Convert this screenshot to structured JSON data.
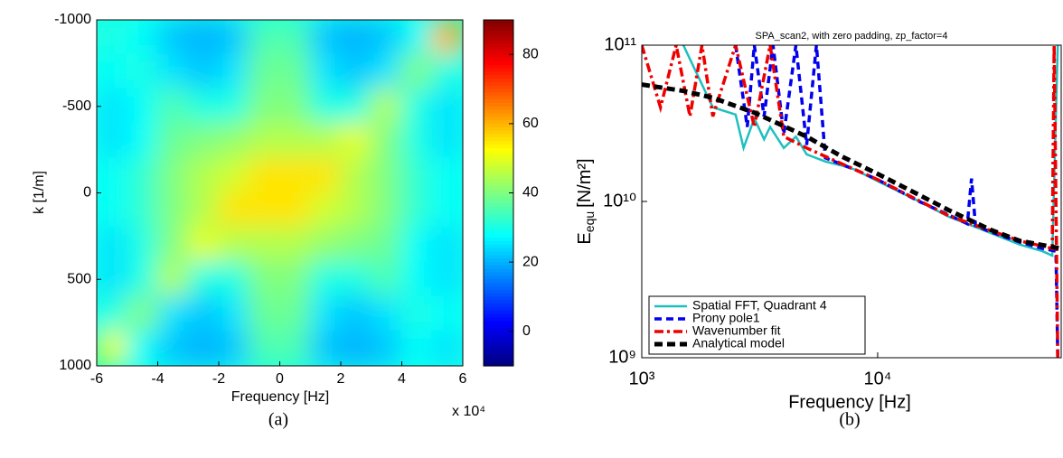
{
  "chart_data": [
    {
      "type": "heatmap",
      "caption": "(a)",
      "xlabel": "Frequency [Hz]",
      "ylabel": "k [1/m]",
      "x_offset_text": "x 10⁴",
      "xlim": [
        -6,
        6
      ],
      "xticks": [
        -6,
        -4,
        -2,
        0,
        2,
        4,
        6
      ],
      "ylim": [
        1000,
        -1000
      ],
      "yticks": [
        -1000,
        -500,
        0,
        500,
        1000
      ],
      "zlim": [
        -10,
        90
      ],
      "zticks": [
        0,
        20,
        40,
        60,
        80
      ],
      "colormap": "jet",
      "x": [
        -5.5,
        -4.5,
        -3.5,
        -2.5,
        -1.5,
        -0.5,
        0.5,
        1.5,
        2.5,
        3.5,
        4.5,
        5.5
      ],
      "y": [
        -900,
        -700,
        -500,
        -300,
        -100,
        100,
        300,
        500,
        700,
        900
      ],
      "z": [
        [
          30,
          28,
          22,
          20,
          22,
          35,
          35,
          22,
          20,
          22,
          28,
          60
        ],
        [
          28,
          30,
          25,
          22,
          25,
          38,
          38,
          25,
          22,
          25,
          40,
          30
        ],
        [
          25,
          28,
          35,
          30,
          30,
          40,
          40,
          30,
          30,
          45,
          30,
          25
        ],
        [
          25,
          28,
          38,
          40,
          42,
          45,
          45,
          45,
          50,
          40,
          30,
          25
        ],
        [
          28,
          32,
          40,
          45,
          48,
          55,
          55,
          55,
          45,
          40,
          32,
          28
        ],
        [
          28,
          32,
          40,
          45,
          55,
          55,
          55,
          48,
          45,
          40,
          32,
          28
        ],
        [
          25,
          30,
          40,
          50,
          45,
          45,
          45,
          42,
          40,
          38,
          28,
          25
        ],
        [
          25,
          30,
          45,
          30,
          30,
          40,
          40,
          30,
          30,
          35,
          28,
          25
        ],
        [
          30,
          40,
          25,
          22,
          25,
          38,
          38,
          25,
          22,
          25,
          30,
          28
        ],
        [
          50,
          28,
          22,
          20,
          22,
          35,
          35,
          22,
          20,
          22,
          28,
          25
        ]
      ]
    },
    {
      "type": "line",
      "caption": "(b)",
      "title": "SPA_scan2, with zero padding, zp_factor=4",
      "xlabel": "Frequency [Hz]",
      "ylabel": {
        "main": "E",
        "sub": "equ",
        "unit": "[N/m²]"
      },
      "xscale": "log",
      "yscale": "log",
      "xlim": [
        1000,
        60000
      ],
      "xticks": [
        {
          "value": 1000,
          "label": "10³"
        },
        {
          "value": 10000,
          "label": "10⁴"
        }
      ],
      "ylim": [
        1000000000,
        100000000000
      ],
      "yticks": [
        {
          "value": 1000000000,
          "label": "10⁹"
        },
        {
          "value": 10000000000,
          "label": "10¹⁰"
        },
        {
          "value": 100000000000,
          "label": "10¹¹"
        }
      ],
      "legend": "lower left",
      "series": [
        {
          "name": "Spatial FFT, Quadrant 4",
          "color": "#1fbfbf",
          "style": "solid",
          "x": [
            1500,
            2000,
            2500,
            2700,
            3000,
            3300,
            3500,
            4000,
            4500,
            5000,
            6000,
            7000,
            8000,
            10000,
            15000,
            20000,
            30000,
            40000,
            50000,
            55000,
            58000
          ],
          "values": [
            100000000000,
            40000000000,
            36000000000,
            22000000000,
            34000000000,
            25000000000,
            30000000000,
            22000000000,
            26000000000,
            20000000000,
            18000000000,
            17000000000,
            16000000000,
            13500000000,
            10000000000,
            8000000000,
            6300000000,
            5300000000,
            4800000000,
            4500000000,
            100000000000
          ]
        },
        {
          "name": "Prony pole1",
          "color": "#0000ee",
          "style": "dashed",
          "x": [
            2500,
            2800,
            3000,
            3300,
            3600,
            4000,
            4500,
            5000,
            5500,
            6000,
            8000,
            10000,
            15000,
            20000,
            24000,
            25000,
            26000,
            30000,
            40000,
            50000,
            57000,
            58000
          ],
          "values": [
            100000000000,
            30000000000,
            100000000000,
            35000000000,
            100000000000,
            27000000000,
            100000000000,
            23000000000,
            100000000000,
            19000000000,
            16000000000,
            13800000000,
            10000000000,
            8200000000,
            7200000000,
            14000000000,
            7000000000,
            6400000000,
            5500000000,
            5000000000,
            4800000000,
            1000000000
          ]
        },
        {
          "name": "Wavenumber fit",
          "color": "#ee0000",
          "style": "dashdot",
          "x": [
            1000,
            1200,
            1400,
            1600,
            1800,
            2000,
            2500,
            3000,
            3500,
            4000,
            5000,
            7000,
            10000,
            20000,
            40000,
            55000,
            56000,
            58000
          ],
          "values": [
            100000000000,
            40000000000,
            100000000000,
            35000000000,
            100000000000,
            35000000000,
            100000000000,
            30000000000,
            100000000000,
            26000000000,
            22000000000,
            17500000000,
            13800000000,
            8100000000,
            5600000000,
            5000000000,
            100000000000,
            1000000000
          ]
        },
        {
          "name": "Analytical model",
          "color": "#000000",
          "style": "dashed-bold",
          "x": [
            1000,
            1500,
            2000,
            3000,
            5000,
            7000,
            10000,
            15000,
            20000,
            30000,
            40000,
            60000
          ],
          "values": [
            56000000000,
            51000000000,
            46000000000,
            37000000000,
            26000000000,
            19500000000,
            15000000000,
            11000000000,
            8800000000,
            6600000000,
            5600000000,
            5000000000
          ]
        }
      ]
    }
  ]
}
